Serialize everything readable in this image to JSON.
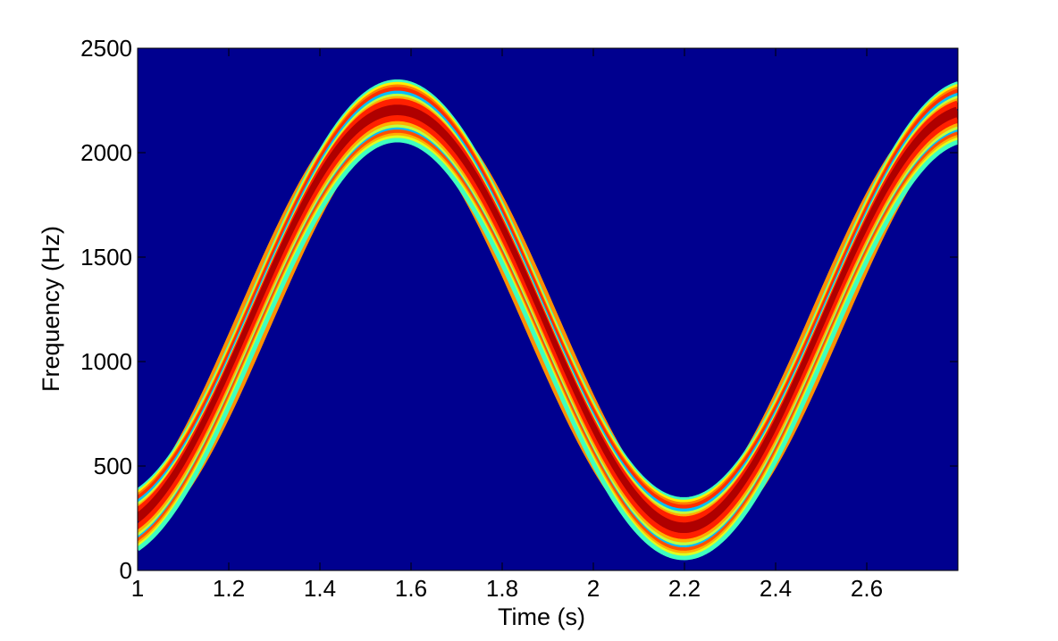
{
  "chart_data": {
    "type": "heatmap",
    "subtype": "spectrogram",
    "title": "",
    "xlabel": "Time (s)",
    "ylabel": "Frequency (Hz)",
    "xlim": [
      1.0,
      2.8
    ],
    "ylim": [
      0,
      2500
    ],
    "x_ticks": [
      1,
      1.2,
      1.4,
      1.6,
      1.8,
      2,
      2.2,
      2.4,
      2.6
    ],
    "x_tick_labels": [
      "1",
      "1.2",
      "1.4",
      "1.6",
      "1.8",
      "2",
      "2.2",
      "2.4",
      "2.6"
    ],
    "y_ticks": [
      0,
      500,
      1000,
      1500,
      2000,
      2500
    ],
    "y_tick_labels": [
      "0",
      "500",
      "1000",
      "1500",
      "2000",
      "2500"
    ],
    "grid": false,
    "legend": "none",
    "colormap": "jet",
    "background_color": "#00008f",
    "ridge": {
      "description": "sinusoidal frequency modulation",
      "center_hz": 1200,
      "amplitude_hz": 1000,
      "period_s": 1.257,
      "peak_time_s": 1.57,
      "peak_hz": 2200,
      "trough_time_s": 2.2,
      "trough_hz": 200,
      "band_half_width_hz": 140
    },
    "ridge_points": [
      {
        "t": 1.0,
        "f": 240
      },
      {
        "t": 1.2,
        "f": 800
      },
      {
        "t": 1.4,
        "f": 1790
      },
      {
        "t": 1.57,
        "f": 2200
      },
      {
        "t": 1.8,
        "f": 1650
      },
      {
        "t": 2.0,
        "f": 650
      },
      {
        "t": 2.2,
        "f": 200
      },
      {
        "t": 2.4,
        "f": 830
      },
      {
        "t": 2.6,
        "f": 1700
      },
      {
        "t": 2.8,
        "f": 2190
      }
    ]
  }
}
